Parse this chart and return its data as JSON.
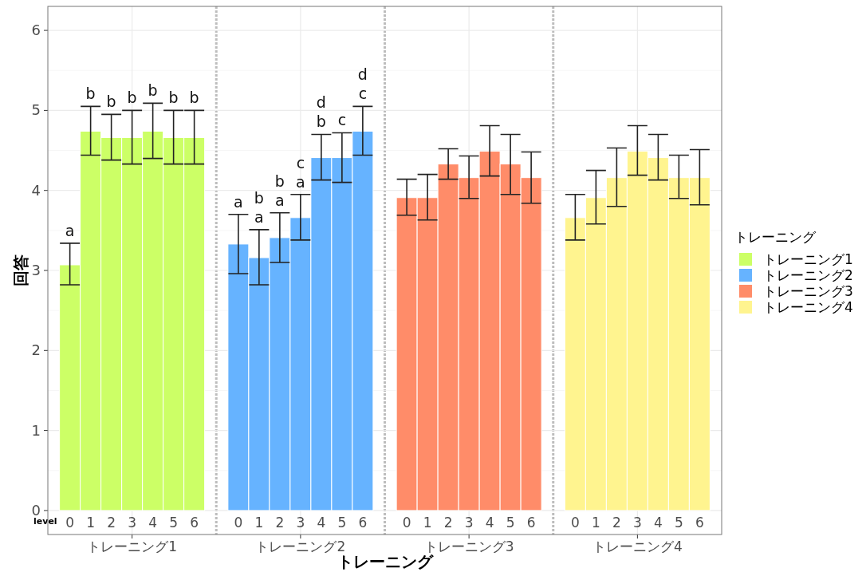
{
  "chart_data": [
    {
      "type": "bar",
      "categories": [
        "0",
        "1",
        "2",
        "3",
        "4",
        "5",
        "6"
      ],
      "xlabel": "トレーニング1",
      "ylabel": "回答",
      "legend": "right",
      "legend_title": "トレーニング",
      "ylim": [
        -0.3,
        6.3
      ],
      "yticks": [
        0,
        1,
        2,
        3,
        4,
        5,
        6
      ],
      "grid": true,
      "series": [
        {
          "name": "トレーニング1",
          "color": "#ccff66",
          "values": [
            3.07,
            4.74,
            4.66,
            4.66,
            4.74,
            4.66,
            4.66
          ],
          "errors": [
            [
              2.82,
              3.34
            ],
            [
              4.44,
              5.05
            ],
            [
              4.38,
              4.95
            ],
            [
              4.33,
              5.0
            ],
            [
              4.4,
              5.09
            ],
            [
              4.33,
              5.0
            ],
            [
              4.33,
              5.0
            ]
          ]
        }
      ],
      "annotations": [
        "level",
        {
          "text": "a",
          "x": "0",
          "y": 3.34
        },
        {
          "text": "b",
          "x": "1",
          "y": 5.05
        },
        {
          "text": "b",
          "x": "2",
          "y": 4.95
        },
        {
          "text": "b",
          "x": "3",
          "y": 5.0
        },
        {
          "text": "b",
          "x": "4",
          "y": 5.09
        },
        {
          "text": "b",
          "x": "5",
          "y": 5.0
        },
        {
          "text": "b",
          "x": "6",
          "y": 5.0
        }
      ]
    },
    {
      "type": "bar",
      "categories": [
        "0",
        "1",
        "2",
        "3",
        "4",
        "5",
        "6"
      ],
      "xlabel": "トレーニング2",
      "legend": "right",
      "ylim": [
        -0.3,
        6.3
      ],
      "yticks": [
        0,
        1,
        2,
        3,
        4,
        5,
        6
      ],
      "grid": true,
      "tick_labels": "x",
      "series": [
        {
          "name": "トレーニング2",
          "color": "#66b3ff",
          "values": [
            3.33,
            3.16,
            3.41,
            3.66,
            4.41,
            4.41,
            4.74
          ],
          "errors": [
            [
              2.96,
              3.7
            ],
            [
              2.82,
              3.51
            ],
            [
              3.1,
              3.72
            ],
            [
              3.38,
              3.95
            ],
            [
              4.13,
              4.7
            ],
            [
              4.1,
              4.72
            ],
            [
              4.44,
              5.05
            ]
          ]
        }
      ],
      "annotations": [
        "トレーニング",
        {
          "text": "a",
          "x": "0",
          "y": 3.7
        },
        {
          "text": "a",
          "x": "1",
          "y": 3.51
        },
        {
          "text": "b",
          "x": "1",
          "y": 3.51
        },
        {
          "text": "a",
          "x": "2",
          "y": 3.72
        },
        {
          "text": "b",
          "x": "2",
          "y": 3.72
        },
        {
          "text": "a",
          "x": "3",
          "y": 3.95
        },
        {
          "text": "c",
          "x": "3",
          "y": 3.95
        },
        {
          "text": "b",
          "x": "4",
          "y": 4.7
        },
        {
          "text": "d",
          "x": "4",
          "y": 4.7
        },
        {
          "text": "c",
          "x": "5",
          "y": 4.72
        },
        {
          "text": "c",
          "x": "6",
          "y": 5.05
        },
        {
          "text": "d",
          "x": "6",
          "y": 5.05
        }
      ]
    },
    {
      "type": "bar",
      "categories": [
        "0",
        "1",
        "2",
        "3",
        "4",
        "5",
        "6"
      ],
      "xlabel": "トレーニング3",
      "legend": "right",
      "ylim": [
        -0.3,
        6.3
      ],
      "yticks": [
        0,
        1,
        2,
        3,
        4,
        5,
        6
      ],
      "grid": true,
      "tick_labels": "x",
      "series": [
        {
          "name": "トレーニング3",
          "color": "#ff8c69",
          "values": [
            3.91,
            3.91,
            4.33,
            4.16,
            4.49,
            4.33,
            4.16
          ],
          "errors": [
            [
              3.69,
              4.14
            ],
            [
              3.63,
              4.2
            ],
            [
              4.14,
              4.52
            ],
            [
              3.9,
              4.43
            ],
            [
              4.18,
              4.81
            ],
            [
              3.95,
              4.7
            ],
            [
              3.84,
              4.48
            ]
          ]
        }
      ]
    },
    {
      "type": "bar",
      "categories": [
        "0",
        "1",
        "2",
        "3",
        "4",
        "5",
        "6"
      ],
      "xlabel": "トレーニング4",
      "ylim": [
        -0.3,
        6.3
      ],
      "yticks": [
        0,
        1,
        2,
        3,
        4,
        5,
        6
      ],
      "grid": true,
      "tick_labels": "x",
      "legend": "right",
      "series": [
        {
          "name": "トレーニング4",
          "color": "#fff48f",
          "values": [
            3.66,
            3.91,
            4.16,
            4.49,
            4.41,
            4.16,
            4.16
          ],
          "errors": [
            [
              3.38,
              3.95
            ],
            [
              3.58,
              4.25
            ],
            [
              3.8,
              4.53
            ],
            [
              4.19,
              4.81
            ],
            [
              4.13,
              4.7
            ],
            [
              3.9,
              4.44
            ],
            [
              3.82,
              4.51
            ]
          ]
        }
      ]
    }
  ]
}
